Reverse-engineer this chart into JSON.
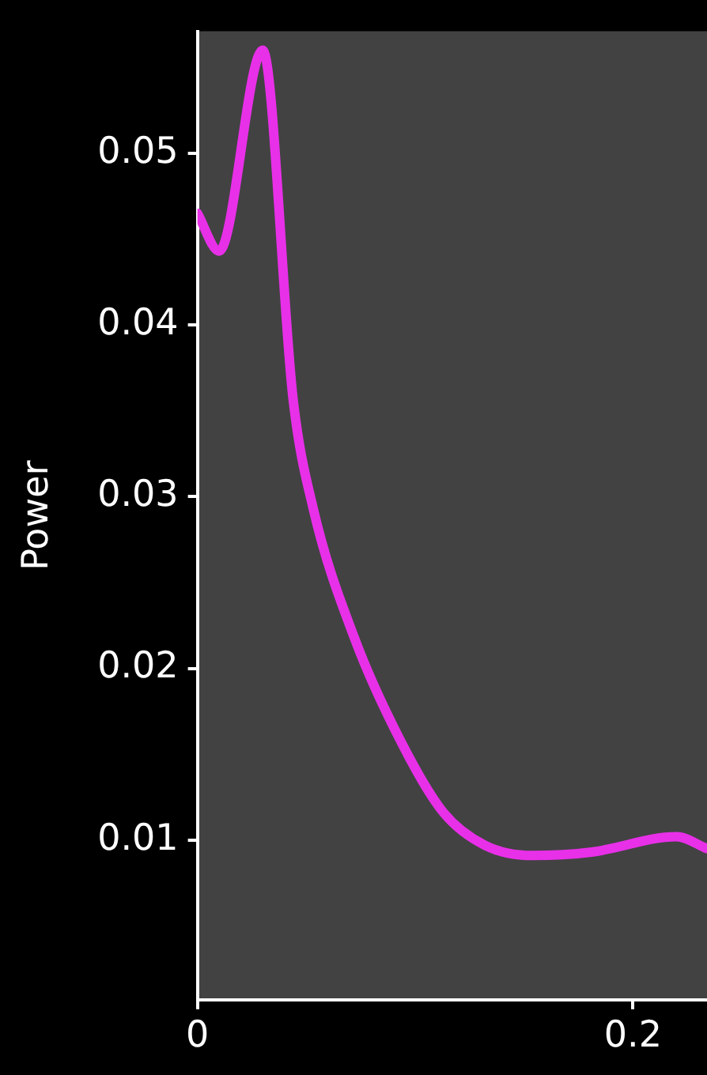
{
  "chart_data": {
    "type": "line",
    "ylabel": "Power",
    "x": [
      0,
      0.01,
      0.03,
      0.044,
      0.053,
      0.072,
      0.094,
      0.113,
      0.132,
      0.154,
      0.181,
      0.22,
      0.234
    ],
    "series": [
      {
        "color": "#e830e8",
        "values": [
          0.0465,
          0.0443,
          0.056,
          0.0356,
          0.0294,
          0.0218,
          0.0156,
          0.0116,
          0.0097,
          0.0091,
          0.0093,
          0.0102,
          0.0095
        ]
      }
    ],
    "xlim": [
      0,
      0.234
    ],
    "xticks": [
      0,
      0.2
    ],
    "ylim": [
      0.0007,
      0.0571
    ],
    "yticks": [
      0.01,
      0.02,
      0.03,
      0.04,
      0.05
    ],
    "grid": false,
    "legend": false,
    "marker": "none",
    "line_style": "solid"
  }
}
